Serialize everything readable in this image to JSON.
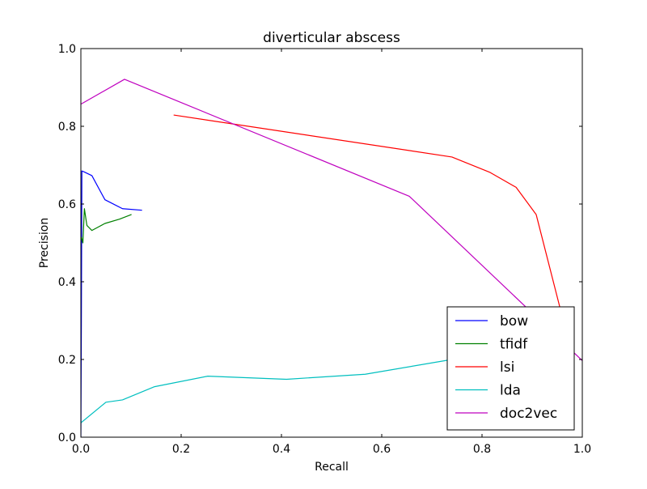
{
  "chart_data": {
    "type": "line",
    "title": "diverticular abscess",
    "xlabel": "Recall",
    "ylabel": "Precision",
    "xlim": [
      0.0,
      1.0
    ],
    "ylim": [
      0.0,
      1.0
    ],
    "xticks": [
      "0.0",
      "0.2",
      "0.4",
      "0.6",
      "0.8",
      "1.0"
    ],
    "yticks": [
      "0.0",
      "0.2",
      "0.4",
      "0.6",
      "0.8",
      "1.0"
    ],
    "grid": false,
    "legend_position": "lower-right",
    "series": [
      {
        "name": "bow",
        "color": "#0000ff",
        "x": [
          0.0,
          0.001,
          0.002,
          0.006,
          0.022,
          0.048,
          0.083,
          0.122
        ],
        "y": [
          0.0,
          0.3,
          0.685,
          0.683,
          0.673,
          0.611,
          0.588,
          0.584
        ]
      },
      {
        "name": "tfidf",
        "color": "#008000",
        "x": [
          0.001,
          0.004,
          0.007,
          0.012,
          0.022,
          0.048,
          0.077,
          0.101
        ],
        "y": [
          0.515,
          0.5,
          0.588,
          0.545,
          0.532,
          0.55,
          0.561,
          0.573
        ]
      },
      {
        "name": "lsi",
        "color": "#ff0000",
        "x": [
          0.185,
          0.74,
          0.815,
          0.868,
          0.908,
          0.965
        ],
        "y": [
          0.829,
          0.721,
          0.682,
          0.643,
          0.573,
          0.285
        ]
      },
      {
        "name": "lda",
        "color": "#00bfbf",
        "x": [
          0.0,
          0.05,
          0.083,
          0.147,
          0.253,
          0.41,
          0.567,
          0.74,
          0.79
        ],
        "y": [
          0.037,
          0.09,
          0.096,
          0.13,
          0.157,
          0.149,
          0.162,
          0.2,
          0.205
        ]
      },
      {
        "name": "doc2vec",
        "color": "#bf00bf",
        "x": [
          0.0,
          0.087,
          0.655,
          1.0
        ],
        "y": [
          0.857,
          0.921,
          0.62,
          0.197
        ]
      }
    ]
  }
}
